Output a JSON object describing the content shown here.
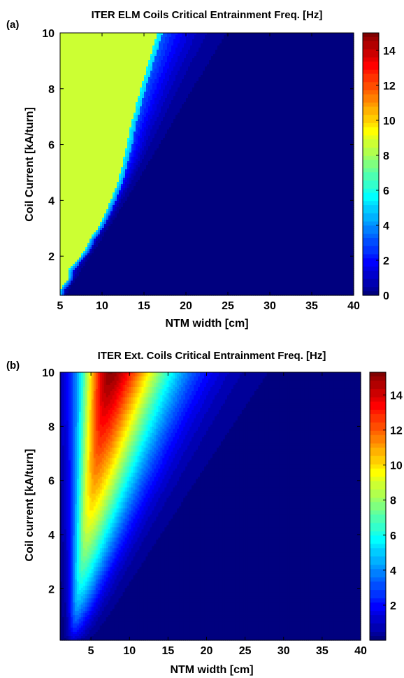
{
  "colormap": {
    "name": "jet",
    "stops": [
      "#00007f",
      "#0000ff",
      "#007fff",
      "#00ffff",
      "#7fff7f",
      "#ffff00",
      "#ff7f00",
      "#ff0000",
      "#7f0000"
    ]
  },
  "chart_data": [
    {
      "type": "heatmap",
      "panel_label": "(a)",
      "title": "ITER ELM Coils Critical Entrainment Freq. [Hz]",
      "xlabel": "NTM width [cm]",
      "ylabel": "Coil Current [kA/turn]",
      "xlim": [
        5,
        40
      ],
      "ylim": [
        0.6,
        10
      ],
      "xticks": [
        5,
        10,
        15,
        20,
        25,
        30,
        35,
        40
      ],
      "yticks": [
        2,
        4,
        6,
        8,
        10
      ],
      "zlim": [
        0,
        15
      ],
      "colorbar_ticks": [
        0,
        2,
        4,
        6,
        8,
        10,
        12,
        14
      ],
      "plateau_value": 8.6,
      "plateau_boundary": {
        "current": [
          0.8,
          1.2,
          1.5,
          2.2,
          2.6,
          3.0,
          3.4,
          4.0,
          4.5,
          5.0,
          5.5,
          6.0,
          6.4,
          6.8,
          7.2,
          7.6,
          8.0,
          8.4,
          8.8,
          9.2,
          9.6,
          10.0
        ],
        "width": [
          5.0,
          6.0,
          6.0,
          8.0,
          8.5,
          9.5,
          10.2,
          11.0,
          11.7,
          12.2,
          12.6,
          13.0,
          13.2,
          13.5,
          13.9,
          14.2,
          14.6,
          15.0,
          15.4,
          15.8,
          16.2,
          16.6
        ]
      }
    },
    {
      "type": "heatmap",
      "panel_label": "(b)",
      "title": "ITER Ext. Coils Critical Entrainment Freq. [Hz]",
      "xlabel": "NTM width [cm]",
      "ylabel": "Coil current [kA/turn]",
      "xlim": [
        1,
        40
      ],
      "ylim": [
        0.1,
        10
      ],
      "xticks": [
        5,
        10,
        15,
        20,
        25,
        30,
        35,
        40
      ],
      "yticks": [
        2,
        4,
        6,
        8,
        10
      ],
      "zlim": [
        0,
        15.3
      ],
      "colorbar_ticks": [
        2,
        4,
        6,
        8,
        10,
        12,
        14
      ],
      "peak": {
        "width": 7.5,
        "current": 10,
        "value": 15.2
      }
    }
  ]
}
